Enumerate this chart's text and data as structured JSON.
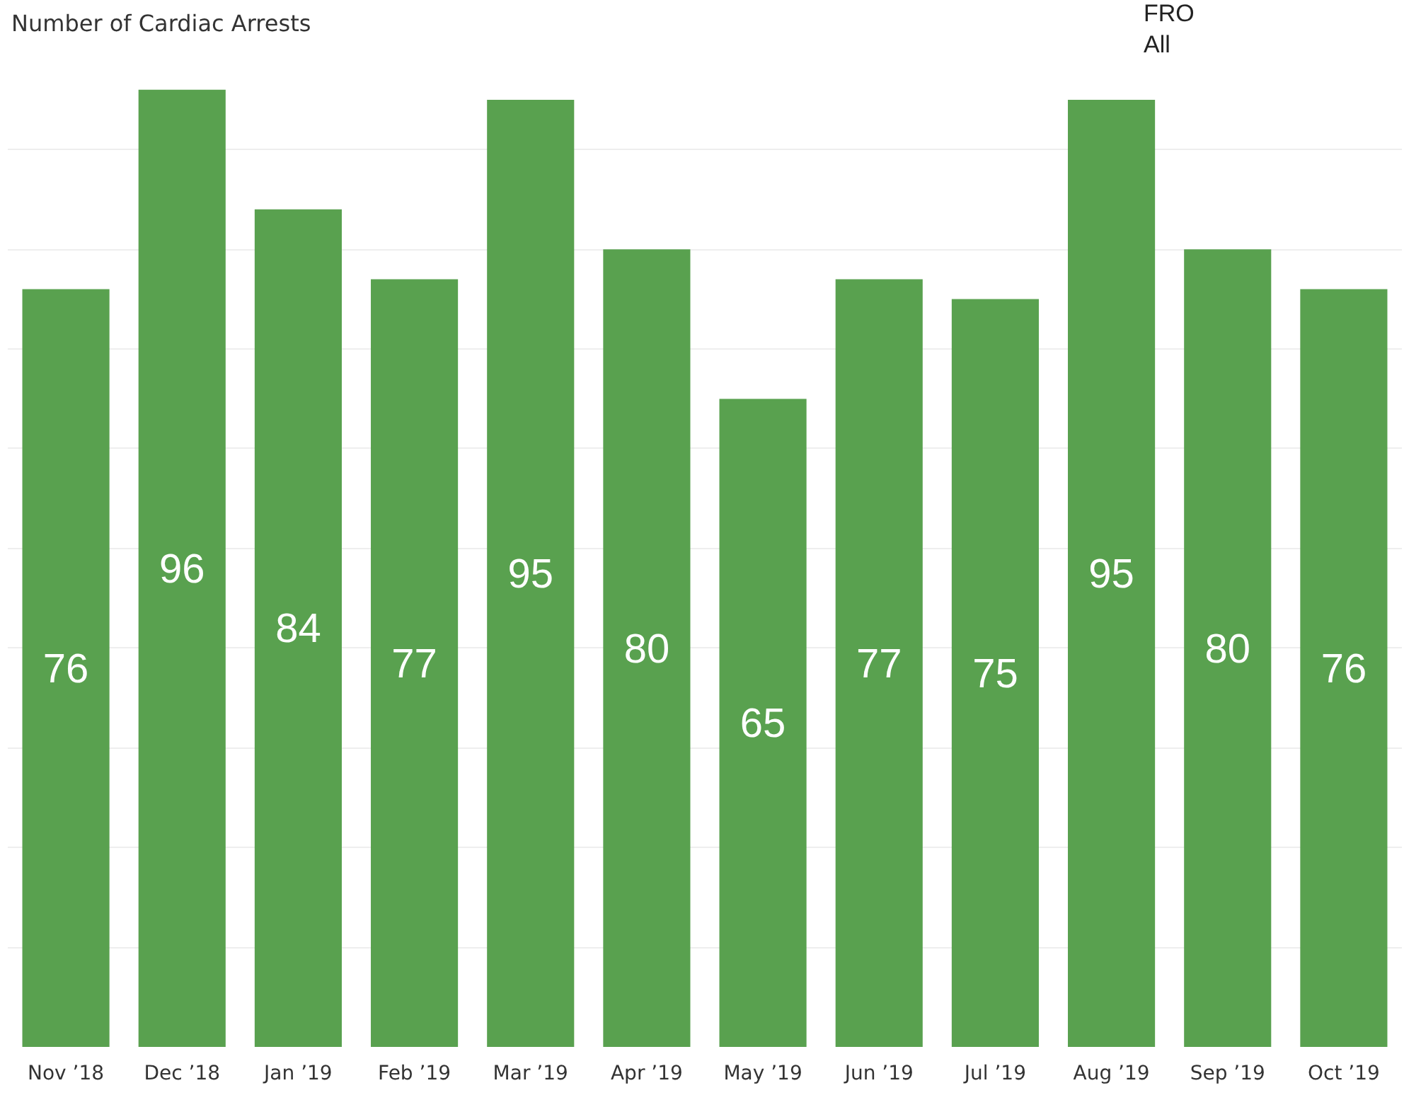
{
  "chart_data": {
    "type": "bar",
    "title": "Number of Cardiac Arrests",
    "annotations": [
      "FRO",
      "All"
    ],
    "categories": [
      "Nov ’18",
      "Dec ’18",
      "Jan ’19",
      "Feb ’19",
      "Mar ’19",
      "Apr ’19",
      "May ’19",
      "Jun ’19",
      "Jul ’19",
      "Aug ’19",
      "Sep ’19",
      "Oct ’19"
    ],
    "values": [
      76,
      96,
      84,
      77,
      95,
      80,
      65,
      77,
      75,
      95,
      80,
      76
    ],
    "color": "#59a14f",
    "grid": "y",
    "tick_labels": "x",
    "data_labels": true
  }
}
